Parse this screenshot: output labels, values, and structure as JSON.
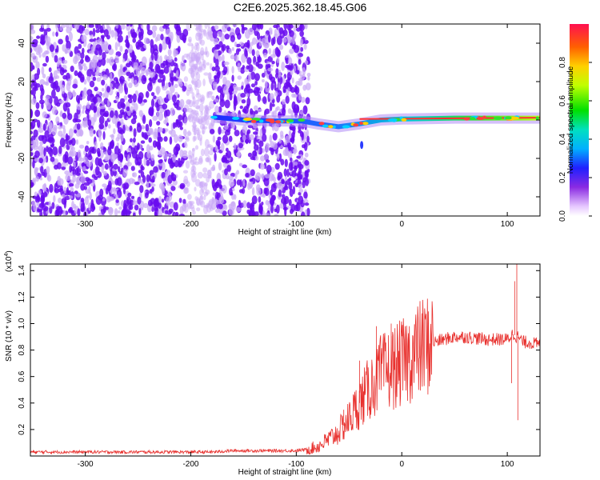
{
  "figure_title": "C2E6.2025.362.18.45.G06",
  "chart_data": [
    {
      "type": "heatmap",
      "title": "C2E6.2025.362.18.45.G06",
      "xlabel": "Height of straight line (km)",
      "ylabel": "Frequency (Hz)",
      "xlim": [
        -352,
        131
      ],
      "ylim": [
        -50,
        50
      ],
      "xticks": [
        -300,
        -200,
        -100,
        0,
        100
      ],
      "xtick_labels": [
        "-300",
        "-200",
        "-100",
        "0",
        "100"
      ],
      "yticks": [
        -40,
        -20,
        0,
        20,
        40
      ],
      "ytick_labels": [
        "-40",
        "-20",
        "0",
        "20",
        "40"
      ],
      "noise_region_x": [
        -352,
        -88
      ],
      "signal_onset_x": -178,
      "ridge": [
        {
          "x": -178,
          "f": 1.5
        },
        {
          "x": -150,
          "f": 0.0
        },
        {
          "x": -120,
          "f": -0.5
        },
        {
          "x": -95,
          "f": -0.5
        },
        {
          "x": -80,
          "f": -2.0
        },
        {
          "x": -60,
          "f": -3.5
        },
        {
          "x": -40,
          "f": -2.0
        },
        {
          "x": -20,
          "f": 0.0
        },
        {
          "x": 0,
          "f": 0.5
        },
        {
          "x": 50,
          "f": 1.0
        },
        {
          "x": 100,
          "f": 1.0
        },
        {
          "x": 131,
          "f": 1.0
        }
      ],
      "colorbar": {
        "label": "Normalized spectral amplitude",
        "range": [
          0,
          1
        ],
        "ticks": [
          0.0,
          0.2,
          0.4,
          0.6,
          0.8
        ],
        "tick_labels": [
          "0.0",
          "0.2",
          "0.4",
          "0.6",
          "0.8"
        ]
      }
    },
    {
      "type": "line",
      "xlabel": "Height of straight line (km)",
      "ylabel": "SNR (10 * v/v)",
      "scale_label": "(x10",
      "scale_exponent": "4",
      "xlim": [
        -352,
        131
      ],
      "ylim": [
        0,
        1.45
      ],
      "xticks": [
        -300,
        -200,
        -100,
        0,
        100
      ],
      "xtick_labels": [
        "-300",
        "-200",
        "-100",
        "0",
        "100"
      ],
      "yticks": [
        0.2,
        0.4,
        0.6,
        0.8,
        1.0,
        1.2,
        1.4
      ],
      "ytick_labels": [
        "0.2",
        "0.4",
        "0.6",
        "0.8",
        "1.0",
        "1.2",
        "1.4"
      ],
      "series": [
        {
          "name": "SNR",
          "color": "#e8302d",
          "x": [
            -352,
            -300,
            -250,
            -200,
            -180,
            -160,
            -150,
            -120,
            -100,
            -90,
            -80,
            -70,
            -60,
            -50,
            -40,
            -30,
            -20,
            -10,
            0,
            10,
            20,
            30,
            40,
            50,
            60,
            70,
            80,
            90,
            100,
            105,
            110,
            115,
            120,
            131
          ],
          "values": [
            0.03,
            0.03,
            0.03,
            0.03,
            0.03,
            0.04,
            0.04,
            0.04,
            0.04,
            0.05,
            0.07,
            0.12,
            0.18,
            0.28,
            0.4,
            0.52,
            0.62,
            0.66,
            0.7,
            0.76,
            0.82,
            0.86,
            0.88,
            0.9,
            0.9,
            0.89,
            0.88,
            0.88,
            0.88,
            0.92,
            0.9,
            0.86,
            0.86,
            0.84
          ]
        }
      ],
      "spikes": [
        {
          "x": 107,
          "y": 1.32
        },
        {
          "x": 109,
          "y": 1.45
        },
        {
          "x": 110,
          "y": 0.27
        },
        {
          "x": 104,
          "y": 0.55
        },
        {
          "x": -10,
          "y": 1.0
        },
        {
          "x": -24,
          "y": 0.98
        },
        {
          "x": -40,
          "y": 0.72
        },
        {
          "x": -55,
          "y": 0.35
        }
      ]
    }
  ],
  "colors": {
    "noise": "#6a0cf0",
    "noise_light": "#c9a8f7",
    "line": "#e8302d",
    "axis": "#000000"
  }
}
